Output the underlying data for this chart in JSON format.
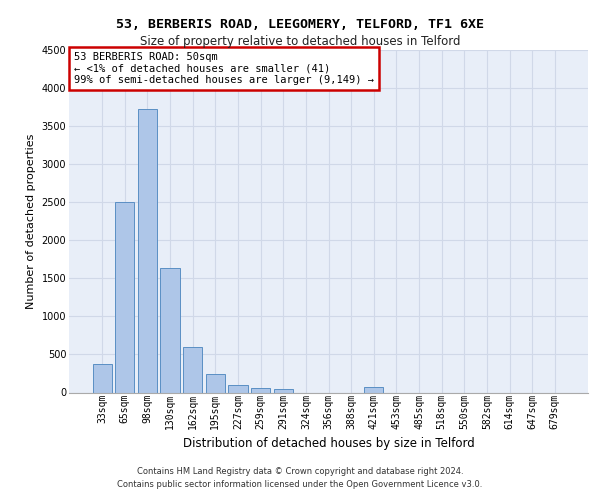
{
  "title1": "53, BERBERIS ROAD, LEEGOMERY, TELFORD, TF1 6XE",
  "title2": "Size of property relative to detached houses in Telford",
  "xlabel": "Distribution of detached houses by size in Telford",
  "ylabel": "Number of detached properties",
  "categories": [
    "33sqm",
    "65sqm",
    "98sqm",
    "130sqm",
    "162sqm",
    "195sqm",
    "227sqm",
    "259sqm",
    "291sqm",
    "324sqm",
    "356sqm",
    "388sqm",
    "421sqm",
    "453sqm",
    "485sqm",
    "518sqm",
    "550sqm",
    "582sqm",
    "614sqm",
    "647sqm",
    "679sqm"
  ],
  "values": [
    375,
    2500,
    3725,
    1640,
    600,
    240,
    100,
    60,
    50,
    0,
    0,
    0,
    70,
    0,
    0,
    0,
    0,
    0,
    0,
    0,
    0
  ],
  "bar_color": "#aec6e8",
  "bar_edge_color": "#5a8fc4",
  "annotation_text": "53 BERBERIS ROAD: 50sqm\n← <1% of detached houses are smaller (41)\n99% of semi-detached houses are larger (9,149) →",
  "annotation_box_color": "#ffffff",
  "annotation_box_edge": "#cc0000",
  "ylim": [
    0,
    4500
  ],
  "yticks": [
    0,
    500,
    1000,
    1500,
    2000,
    2500,
    3000,
    3500,
    4000,
    4500
  ],
  "grid_color": "#d0d8e8",
  "bg_color": "#e8eef8",
  "footer1": "Contains HM Land Registry data © Crown copyright and database right 2024.",
  "footer2": "Contains public sector information licensed under the Open Government Licence v3.0.",
  "title1_fontsize": 9.5,
  "title2_fontsize": 8.5,
  "ylabel_fontsize": 8,
  "xlabel_fontsize": 8.5,
  "tick_fontsize": 7,
  "annot_fontsize": 7.5,
  "footer_fontsize": 6
}
